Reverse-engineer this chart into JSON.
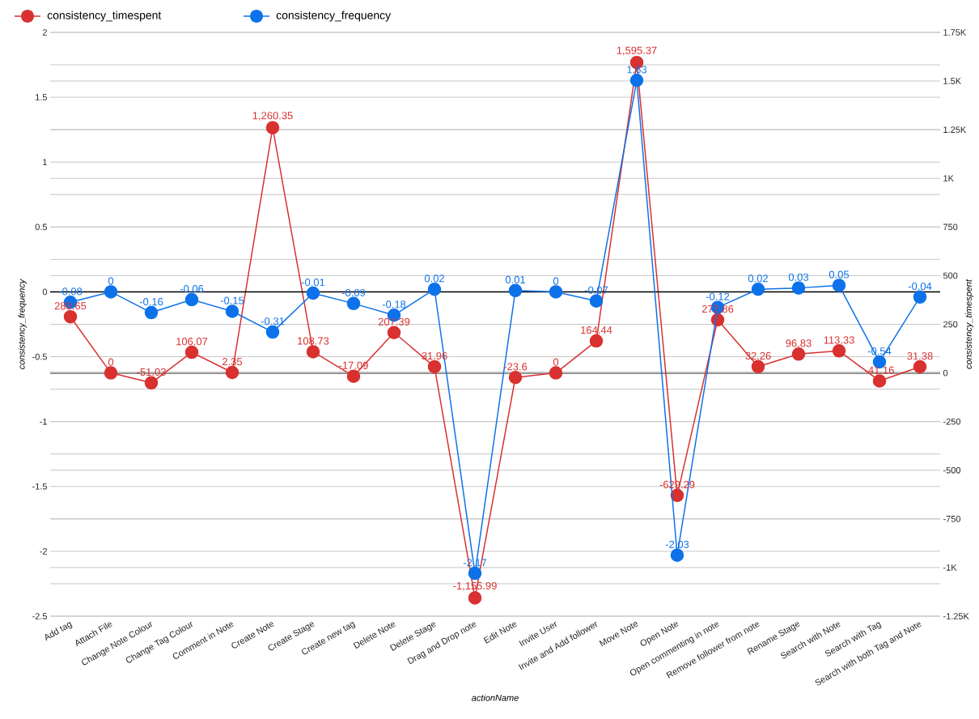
{
  "chart_data": {
    "type": "line",
    "categories": [
      "Add tag",
      "Attach File",
      "Change Note Colour",
      "Change Tag Colour",
      "Comment in Note",
      "Create Note",
      "Create Stage",
      "Create new tag",
      "Delete Note",
      "Delete Stage",
      "Drag and Drop note",
      "Edit Note",
      "Invite User",
      "Invite and Add follower",
      "Move Note",
      "Open Note",
      "Open commenting in note",
      "Remove follower from note",
      "Rename Stage",
      "Search with Note",
      "Search with Tag",
      "Search with both Tag and Note"
    ],
    "series": [
      {
        "name": "consistency_timespent",
        "color": "#d93030",
        "axis": "y2",
        "values": [
          288.65,
          0,
          -51.03,
          106.07,
          2.35,
          1260.35,
          108.73,
          -17.09,
          207.39,
          31.96,
          -1155.99,
          -23.6,
          0,
          164.44,
          1595.37,
          -629.29,
          272.86,
          32.26,
          96.83,
          113.33,
          -41.16,
          31.38
        ],
        "value_labels": [
          "288.65",
          "0",
          "-51.03",
          "106.07",
          "2.35",
          "1,260.35",
          "108.73",
          "-17.09",
          "207.39",
          "31.96",
          "-1,155.99",
          "-23.6",
          "0",
          "164.44",
          "1,595.37",
          "-629.29",
          "272.86",
          "32.26",
          "96.83",
          "113.33",
          "-41.16",
          "31.38"
        ]
      },
      {
        "name": "consistency_frequency",
        "color": "#0d72ea",
        "values": [
          -0.08,
          0,
          -0.16,
          -0.06,
          -0.15,
          -0.31,
          -0.01,
          -0.09,
          -0.18,
          0.02,
          -2.17,
          0.01,
          0,
          -0.07,
          1.63,
          -2.03,
          -0.12,
          0.02,
          0.03,
          0.05,
          -0.54,
          -0.04
        ],
        "value_labels": [
          "-0.08",
          "0",
          "-0.16",
          "-0.06",
          "-0.15",
          "-0.31",
          "-0.01",
          "-0.09",
          "-0.18",
          "0.02",
          "-2.17",
          "0.01",
          "0",
          "-0.07",
          "1.63",
          "-2.03",
          "-0.12",
          "0.02",
          "0.03",
          "0.05",
          "-0.54",
          "-0.04"
        ]
      }
    ],
    "xlabel": "actionName",
    "ylabel": "consistency_frequency",
    "y2label": "consistency_timespent",
    "ylim": [
      -2.5,
      2
    ],
    "yticks": [
      -2.5,
      {
        "value": -2.25,
        "label": null
      },
      -2,
      {
        "value": -1.75,
        "label": null
      },
      -1.5,
      {
        "value": -1.25,
        "label": null
      },
      -1,
      {
        "value": -0.75,
        "label": null
      },
      -0.5,
      {
        "value": -0.25,
        "label": null
      },
      0,
      {
        "value": 0.25,
        "label": null
      },
      0.5,
      {
        "value": 0.75,
        "label": null
      },
      1,
      {
        "value": 1.25,
        "label": null
      },
      1.5,
      {
        "value": 1.75,
        "label": null
      },
      2
    ],
    "y2lim": [
      -1250,
      1750
    ],
    "y2ticks": [
      {
        "value": -1250,
        "label": "-1.25K"
      },
      {
        "value": -1000,
        "label": "-1K"
      },
      -750,
      -500,
      -250,
      0,
      250,
      500,
      750,
      {
        "value": 1000,
        "label": "1K"
      },
      {
        "value": 1250,
        "label": "1.25K"
      },
      {
        "value": 1500,
        "label": "1.5K"
      },
      {
        "value": 1750,
        "label": "1.75K"
      }
    ],
    "grid": true,
    "legend": "top left",
    "marker": "circle",
    "line_style": "solid"
  }
}
